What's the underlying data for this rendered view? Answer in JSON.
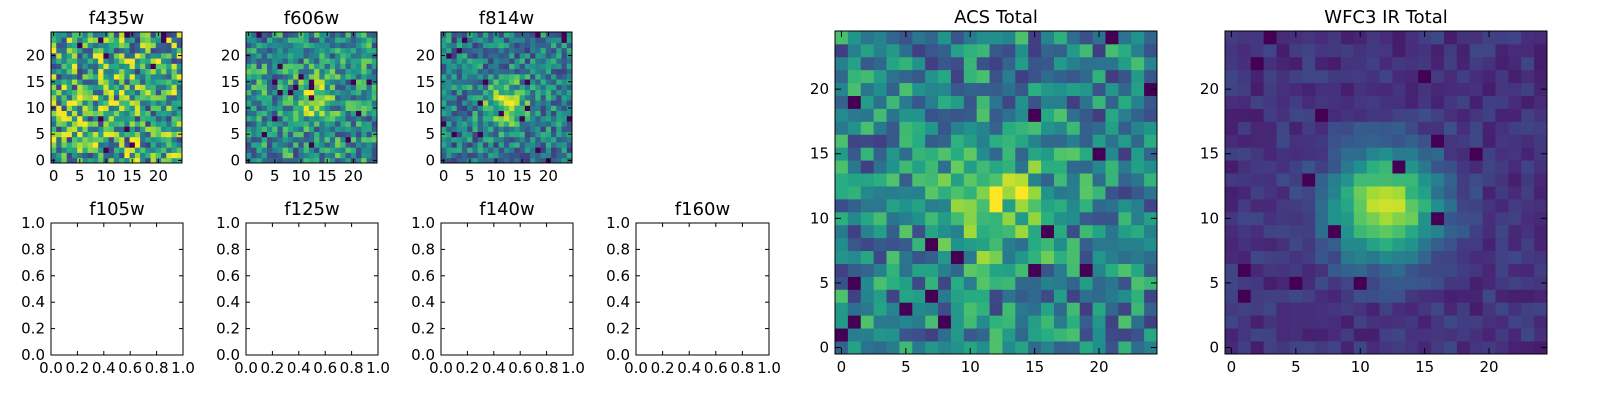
{
  "chart_data": [
    {
      "id": "f435w",
      "type": "heatmap",
      "title": "f435w",
      "grid": [
        25,
        25
      ],
      "xlim": [
        0,
        24
      ],
      "ylim": [
        0,
        24
      ],
      "xticks": [
        "0",
        "5",
        "10",
        "15",
        "20"
      ],
      "yticks": [
        "0",
        "5",
        "10",
        "15",
        "20"
      ],
      "colormap": "viridis",
      "peak": [
        12,
        12
      ],
      "signal": 0.05,
      "noise": 0.42,
      "base": 0.6,
      "seed": 11
    },
    {
      "id": "f606w",
      "type": "heatmap",
      "title": "f606w",
      "grid": [
        25,
        25
      ],
      "xlim": [
        0,
        24
      ],
      "ylim": [
        0,
        24
      ],
      "xticks": [
        "0",
        "5",
        "10",
        "15",
        "20"
      ],
      "yticks": [
        "0",
        "5",
        "10",
        "15",
        "20"
      ],
      "colormap": "viridis",
      "peak": [
        12,
        12
      ],
      "signal": 0.3,
      "noise": 0.3,
      "base": 0.5,
      "seed": 23
    },
    {
      "id": "f814w",
      "type": "heatmap",
      "title": "f814w",
      "grid": [
        25,
        25
      ],
      "xlim": [
        0,
        24
      ],
      "ylim": [
        0,
        24
      ],
      "xticks": [
        "0",
        "5",
        "10",
        "15",
        "20"
      ],
      "yticks": [
        "0",
        "5",
        "10",
        "15",
        "20"
      ],
      "colormap": "viridis",
      "peak": [
        12,
        11
      ],
      "signal": 0.45,
      "noise": 0.26,
      "base": 0.42,
      "seed": 37
    },
    {
      "id": "f105w",
      "type": "empty",
      "title": "f105w",
      "xlim": [
        0,
        1
      ],
      "ylim": [
        0,
        1
      ],
      "xticks": [
        "0.0",
        "0.2",
        "0.4",
        "0.6",
        "0.8",
        "1.0"
      ],
      "yticks": [
        "0.0",
        "0.2",
        "0.4",
        "0.6",
        "0.8",
        "1.0"
      ]
    },
    {
      "id": "f125w",
      "type": "empty",
      "title": "f125w",
      "xlim": [
        0,
        1
      ],
      "ylim": [
        0,
        1
      ],
      "xticks": [
        "0.0",
        "0.2",
        "0.4",
        "0.6",
        "0.8",
        "1.0"
      ],
      "yticks": [
        "0.0",
        "0.2",
        "0.4",
        "0.6",
        "0.8",
        "1.0"
      ]
    },
    {
      "id": "f140w",
      "type": "empty",
      "title": "f140w",
      "xlim": [
        0,
        1
      ],
      "ylim": [
        0,
        1
      ],
      "xticks": [
        "0.0",
        "0.2",
        "0.4",
        "0.6",
        "0.8",
        "1.0"
      ],
      "yticks": [
        "0.0",
        "0.2",
        "0.4",
        "0.6",
        "0.8",
        "1.0"
      ]
    },
    {
      "id": "f160w",
      "type": "empty",
      "title": "f160w",
      "xlim": [
        0,
        1
      ],
      "ylim": [
        0,
        1
      ],
      "xticks": [
        "0.0",
        "0.2",
        "0.4",
        "0.6",
        "0.8",
        "1.0"
      ],
      "yticks": [
        "0.0",
        "0.2",
        "0.4",
        "0.6",
        "0.8",
        "1.0"
      ]
    },
    {
      "id": "acs_total",
      "type": "heatmap",
      "title": "ACS Total",
      "grid": [
        25,
        25
      ],
      "xlim": [
        0,
        24
      ],
      "ylim": [
        0,
        24
      ],
      "xticks": [
        "0",
        "5",
        "10",
        "15",
        "20"
      ],
      "yticks": [
        "0",
        "5",
        "10",
        "15",
        "20"
      ],
      "colormap": "viridis",
      "peak": [
        12,
        11
      ],
      "signal": 0.38,
      "noise": 0.27,
      "base": 0.45,
      "seed": 51
    },
    {
      "id": "wfc3_ir_total",
      "type": "heatmap",
      "title": "WFC3 IR Total",
      "grid": [
        25,
        25
      ],
      "xlim": [
        0,
        24
      ],
      "ylim": [
        0,
        24
      ],
      "xticks": [
        "0",
        "5",
        "10",
        "15",
        "20"
      ],
      "yticks": [
        "0",
        "5",
        "10",
        "15",
        "20"
      ],
      "colormap": "viridis",
      "peak": [
        12,
        11
      ],
      "signal": 0.75,
      "noise": 0.07,
      "base": 0.15,
      "seed": 73
    }
  ]
}
